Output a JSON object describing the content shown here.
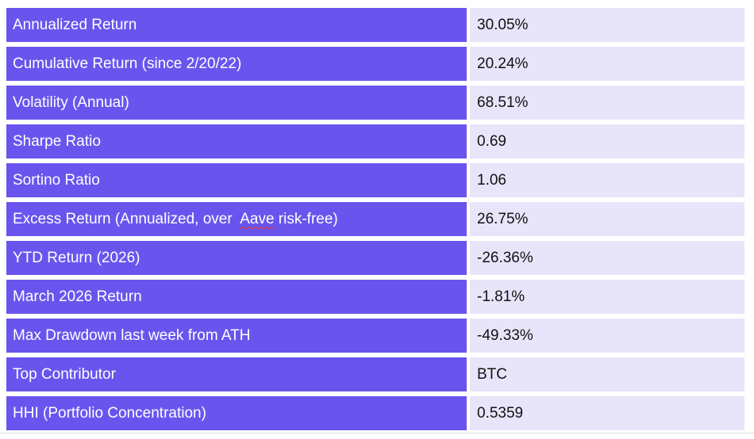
{
  "table": {
    "label_bg": "#6955ee",
    "value_bg": "#e8e4fa",
    "label_text_color": "#ffffff",
    "value_text_color": "#121212",
    "spellcheck_underline_color": "#f03a21",
    "rows": [
      {
        "label": "Annualized Return",
        "value": "30.05%"
      },
      {
        "label": "Cumulative Return (since 2/20/22)",
        "value": "20.24%"
      },
      {
        "label": "Volatility (Annual)",
        "value": "68.51%"
      },
      {
        "label": "Sharpe Ratio",
        "value": "0.69"
      },
      {
        "label": "Sortino Ratio",
        "value": "1.06"
      },
      {
        "label_prefix": "Excess Return (Annualized, over  ",
        "misspelled_word": "Aave",
        "label_suffix": " risk-free)",
        "value": "26.75%"
      },
      {
        "label": "YTD Return (2026)",
        "value": "-26.36%"
      },
      {
        "label": "March 2026 Return",
        "value": "-1.81%"
      },
      {
        "label": "Max Drawdown last week from ATH",
        "value": "-49.33%"
      },
      {
        "label": "Top Contributor",
        "value": "BTC"
      },
      {
        "label": "HHI (Portfolio Concentration)",
        "value": "0.5359"
      }
    ]
  }
}
